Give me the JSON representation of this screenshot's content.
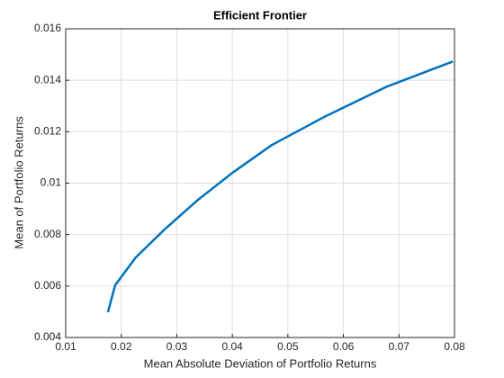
{
  "chart_data": {
    "type": "line",
    "title": "Efficient  Frontier",
    "x_label": "Mean Absolute Deviation of Portfolio Returns",
    "y_label": "Mean of Portfolio Returns",
    "x": [
      0.0176,
      0.0189,
      0.0226,
      0.0278,
      0.0338,
      0.04,
      0.0471,
      0.0565,
      0.0679,
      0.0797
    ],
    "series": [
      {
        "name": "Efficient Frontier",
        "color": "#0072bd",
        "values": [
          0.00498,
          0.00603,
          0.00711,
          0.0082,
          0.00935,
          0.0104,
          0.01148,
          0.01257,
          0.01376,
          0.01473
        ]
      }
    ],
    "xlim": [
      0.01,
      0.08
    ],
    "ylim": [
      0.004,
      0.016
    ],
    "xticks": [
      0.01,
      0.02,
      0.03,
      0.04,
      0.05,
      0.06,
      0.07,
      0.08
    ],
    "yticks": [
      0.004,
      0.006,
      0.008,
      0.01,
      0.012,
      0.014,
      0.016
    ],
    "grid": true
  }
}
